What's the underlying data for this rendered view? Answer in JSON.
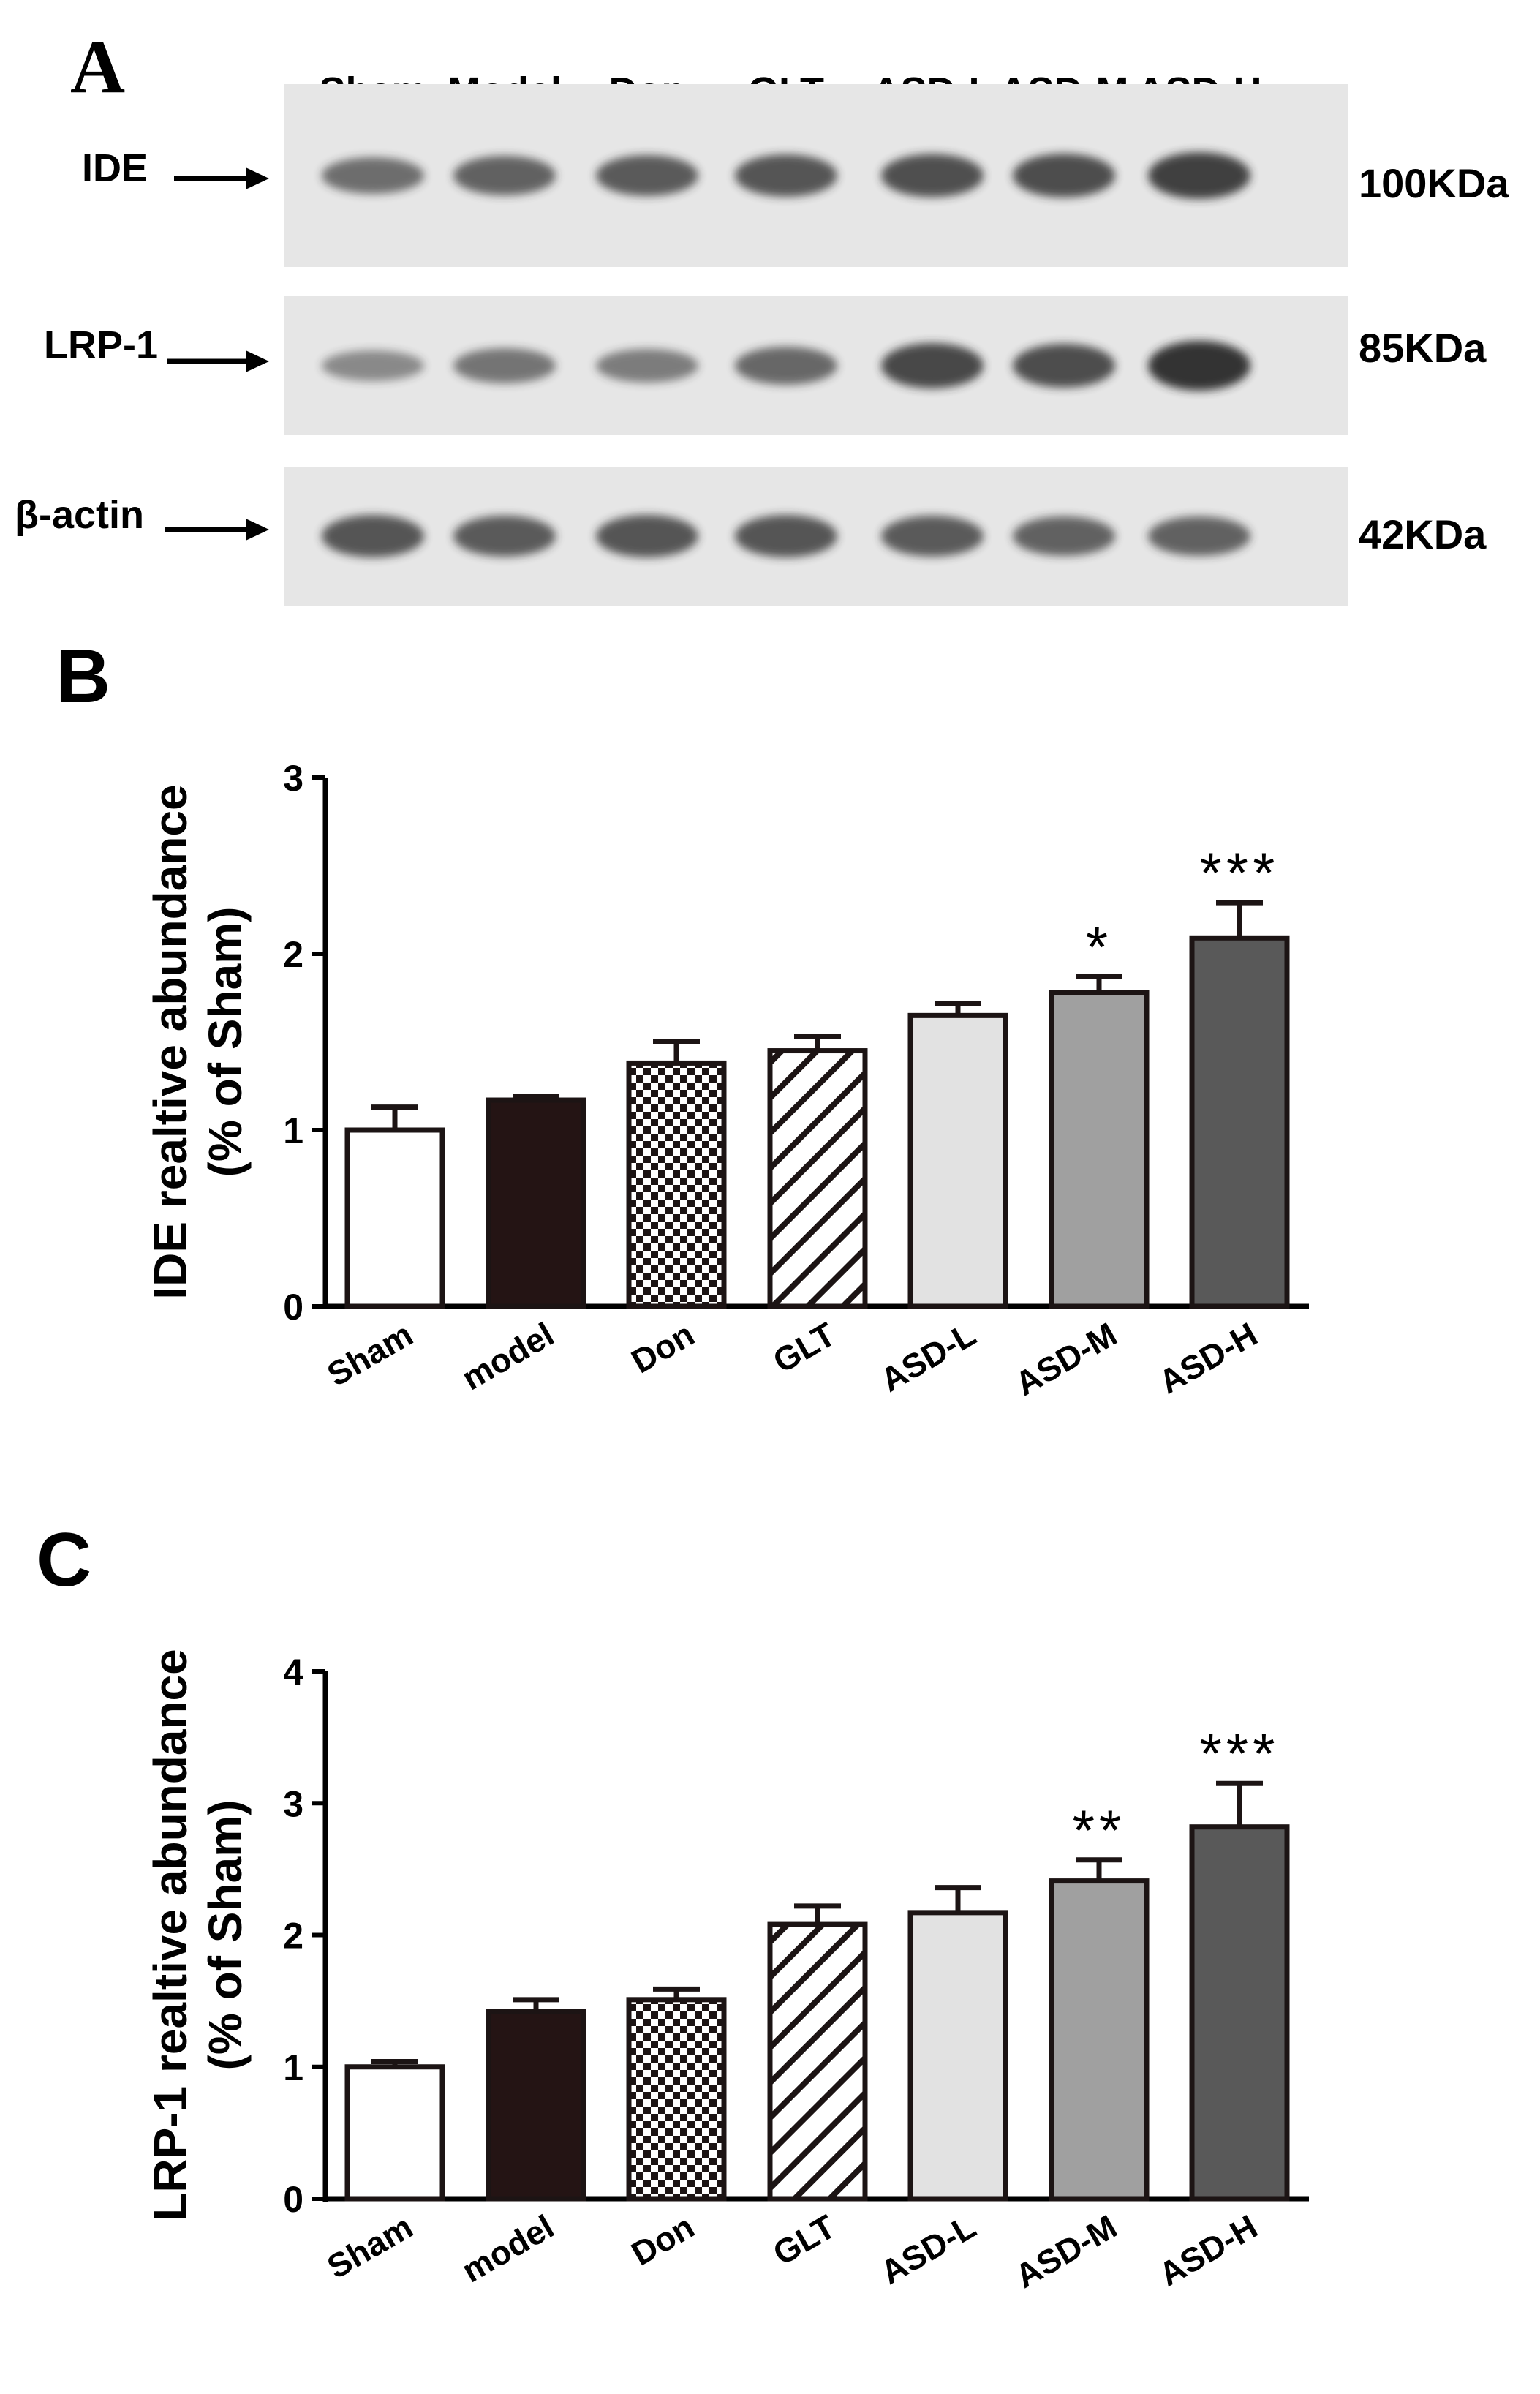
{
  "panels": {
    "a": "A",
    "b": "B",
    "c": "C"
  },
  "blot": {
    "lanes": [
      "Sham",
      "Model",
      "Don",
      "GLT",
      "ASD-L",
      "ASD-M",
      "ASD-H"
    ],
    "rows": [
      {
        "protein": "IDE",
        "size": "100KDa",
        "intensity": [
          0.55,
          0.65,
          0.7,
          0.75,
          0.78,
          0.8,
          0.9
        ]
      },
      {
        "protein": "LRP-1",
        "size": "85KDa",
        "intensity": [
          0.35,
          0.5,
          0.45,
          0.6,
          0.85,
          0.8,
          1.0
        ]
      },
      {
        "protein": "β-actin",
        "size": "42KDa",
        "intensity": [
          0.75,
          0.7,
          0.75,
          0.75,
          0.7,
          0.65,
          0.65
        ]
      }
    ]
  },
  "chart_data": [
    {
      "type": "bar",
      "panel": "B",
      "ylabel_line1": "IDE realtive abundance",
      "ylabel_line2": "(% of Sham)",
      "categories": [
        "Sham",
        "model",
        "Don",
        "GLT",
        "ASD-L",
        "ASD-M",
        "ASD-H"
      ],
      "values": [
        1.0,
        1.17,
        1.38,
        1.45,
        1.65,
        1.78,
        2.09
      ],
      "errors": [
        0.13,
        0.02,
        0.12,
        0.08,
        0.07,
        0.09,
        0.2
      ],
      "significance": [
        "",
        "",
        "",
        "",
        "",
        "*",
        "***"
      ],
      "ylim": [
        0,
        3
      ],
      "yticks": [
        "0",
        "1",
        "2",
        "3"
      ],
      "fills": [
        "white",
        "black",
        "checker",
        "diagonal",
        "lightgray",
        "gray",
        "darkgray"
      ]
    },
    {
      "type": "bar",
      "panel": "C",
      "ylabel_line1": "LRP-1 realtive abundance",
      "ylabel_line2": "(% of Sham)",
      "categories": [
        "Sham",
        "model",
        "Don",
        "GLT",
        "ASD-L",
        "ASD-M",
        "ASD-H"
      ],
      "values": [
        1.0,
        1.42,
        1.51,
        2.08,
        2.17,
        2.41,
        2.82
      ],
      "errors": [
        0.04,
        0.09,
        0.08,
        0.14,
        0.19,
        0.16,
        0.33
      ],
      "significance": [
        "",
        "",
        "",
        "",
        "",
        "**",
        "***"
      ],
      "ylim": [
        0,
        4
      ],
      "yticks": [
        "0",
        "1",
        "2",
        "3",
        "4"
      ],
      "fills": [
        "white",
        "black",
        "checker",
        "diagonal",
        "lightgray",
        "gray",
        "darkgray"
      ]
    }
  ],
  "colors": {
    "bar_edge": "#1c1414",
    "black_fill": "#241414",
    "light_gray": "#e2e2e2",
    "mid_gray": "#a0a0a0",
    "dark_gray": "#595959",
    "blot_bg": "#e6e6e6",
    "band": "#2a2a2a"
  }
}
